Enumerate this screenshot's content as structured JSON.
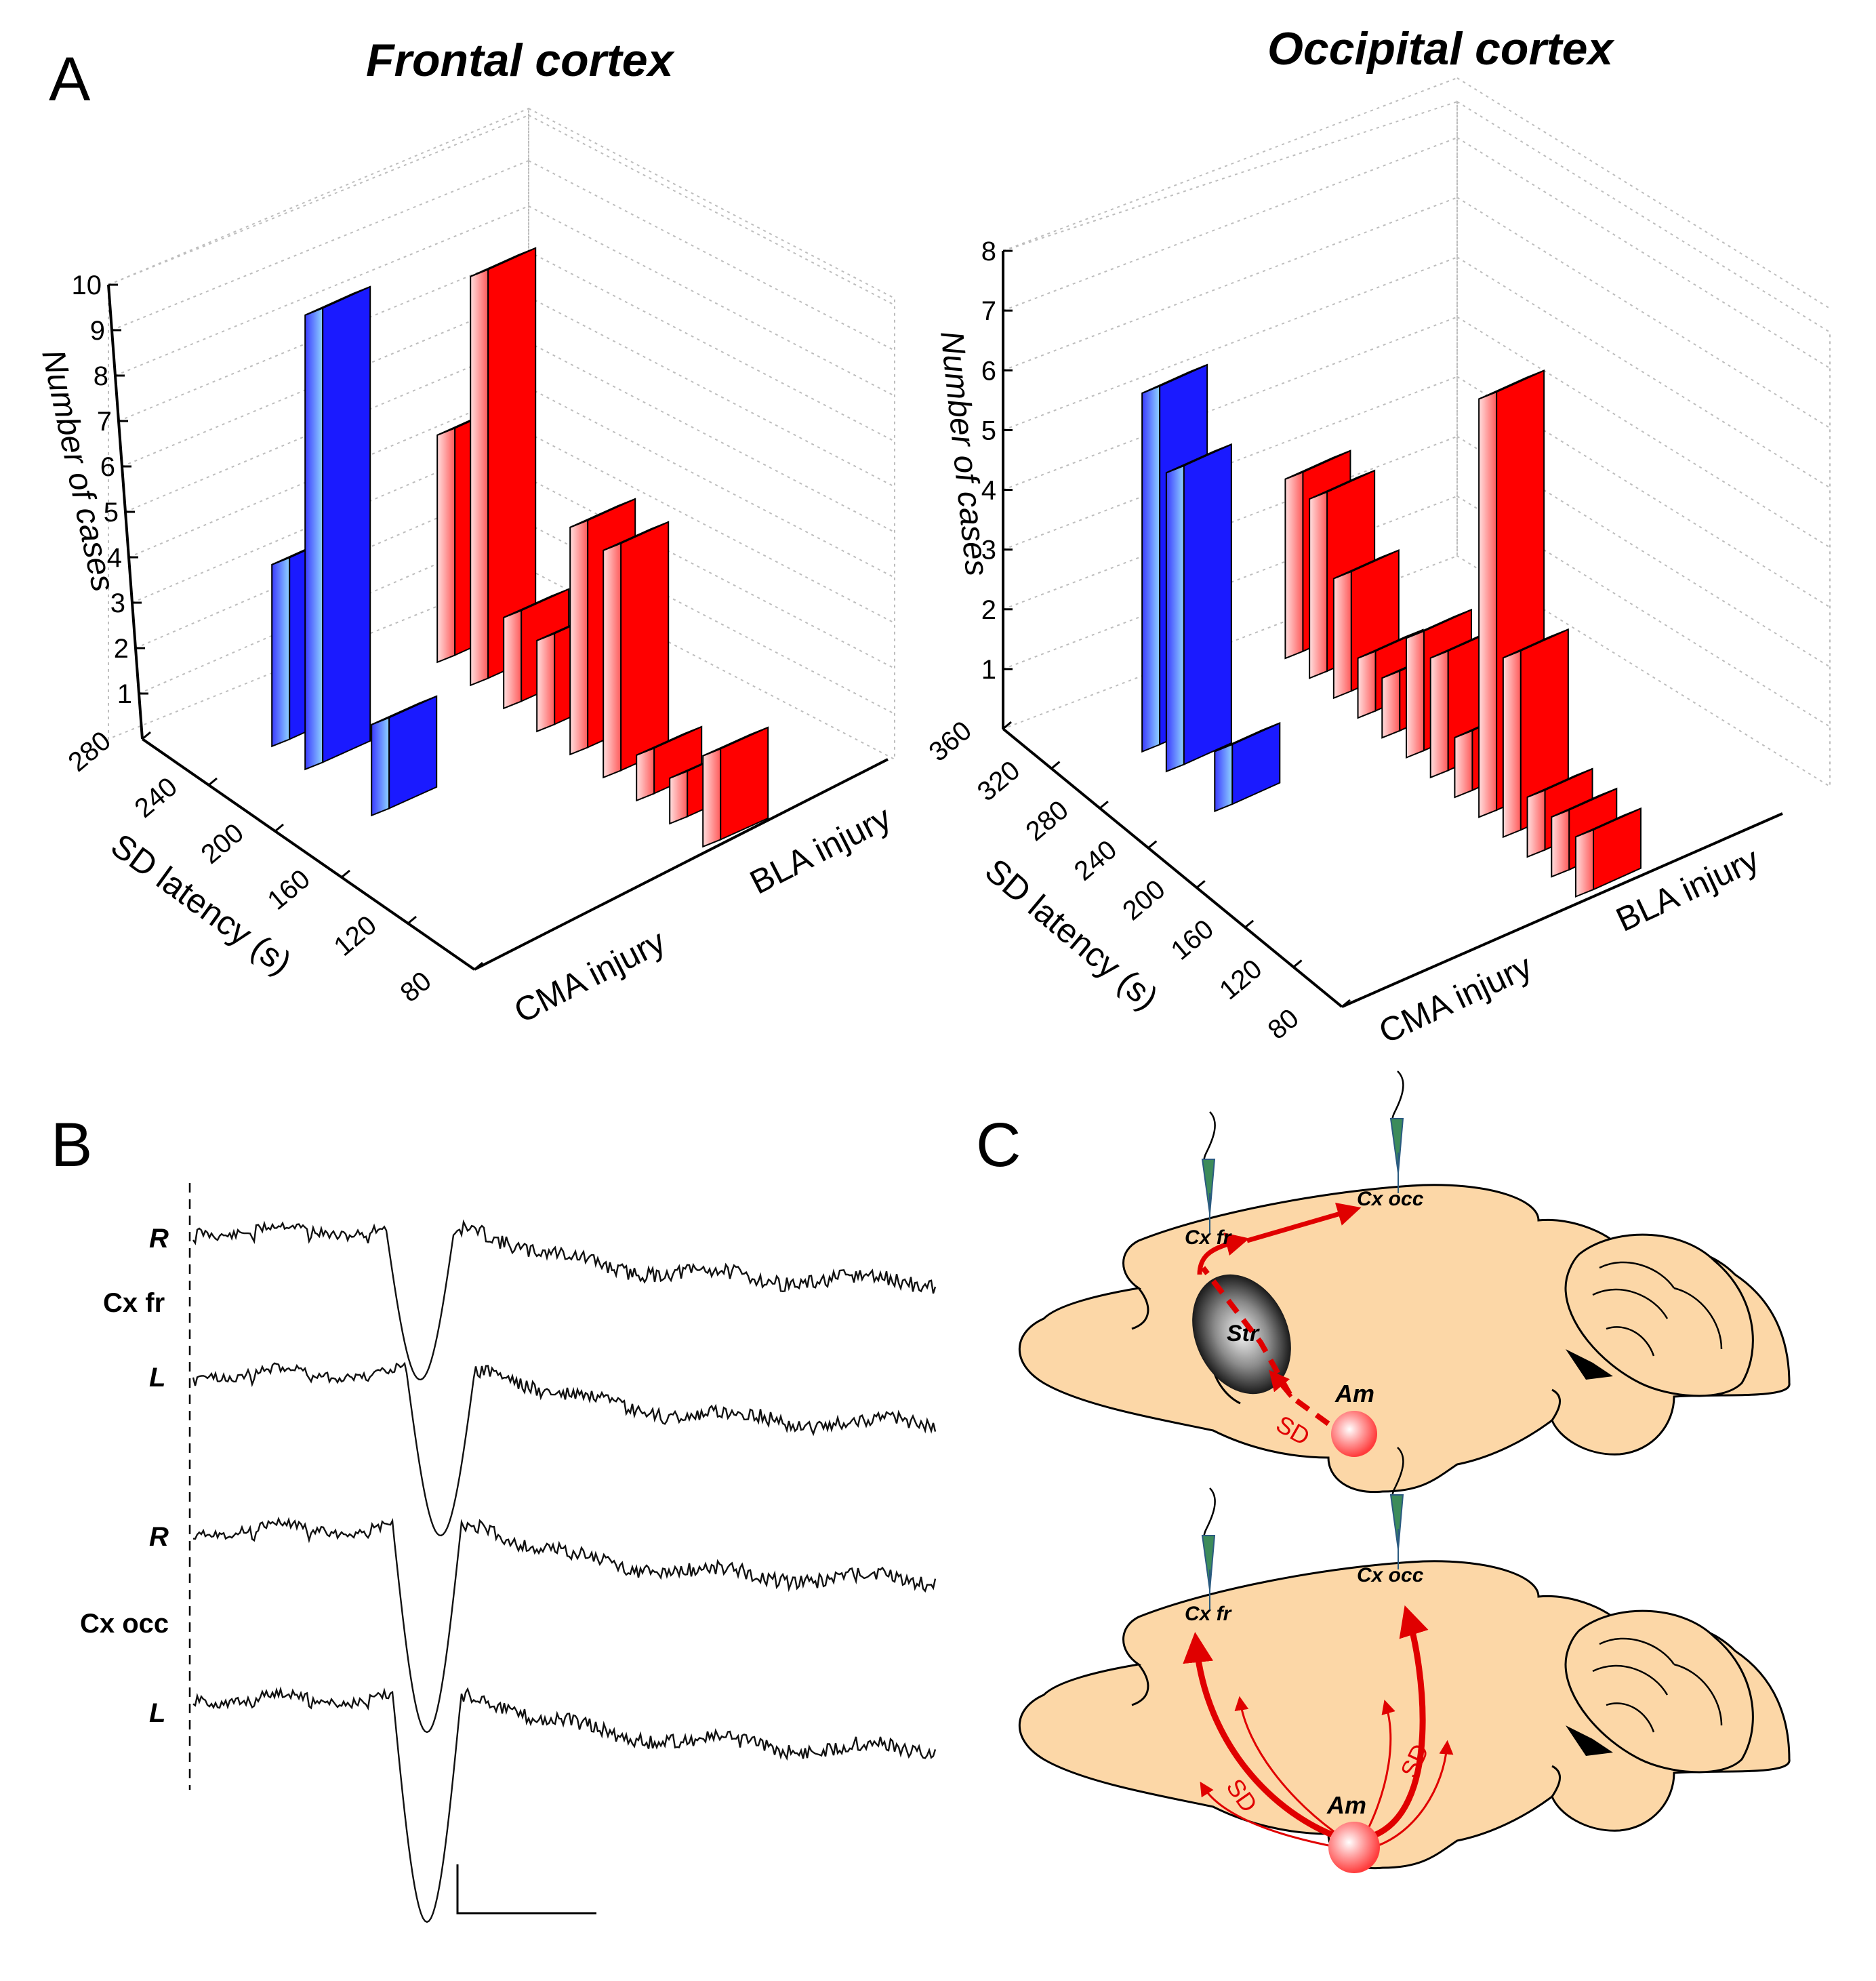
{
  "panels": {
    "A": {
      "letter": "A",
      "charts": [
        {
          "type": "bar",
          "title": "Frontal cortex",
          "ylabel": "Number of cases",
          "xlabel": "SD latency (s)",
          "yticks": [
            "1",
            "2",
            "3",
            "4",
            "5",
            "6",
            "7",
            "8",
            "9",
            "10"
          ],
          "xticks": [
            "280",
            "240",
            "200",
            "160",
            "120",
            "80"
          ],
          "categories": [
            "CMA injury",
            "BLA injury"
          ],
          "ylim": [
            0,
            10
          ],
          "colors": {
            "CMA injury": "#1a1aff",
            "BLA injury": "#ff0000"
          },
          "grid": true
        },
        {
          "type": "bar",
          "title": "Occipital cortex",
          "ylabel": "Number of cases",
          "xlabel": "SD latency (s)",
          "yticks": [
            "1",
            "2",
            "3",
            "4",
            "5",
            "6",
            "7",
            "8"
          ],
          "xticks": [
            "360",
            "320",
            "280",
            "240",
            "200",
            "160",
            "120",
            "80"
          ],
          "categories": [
            "CMA injury",
            "BLA injury"
          ],
          "ylim": [
            0,
            8
          ],
          "colors": {
            "CMA injury": "#1a1aff",
            "BLA injury": "#ff0000"
          },
          "grid": true
        }
      ]
    },
    "B": {
      "letter": "B",
      "groups": [
        "Cx fr",
        "Cx occ"
      ],
      "trace_labels": [
        "R",
        "L",
        "R",
        "L"
      ]
    },
    "C": {
      "letter": "C",
      "top": {
        "cx_fr": "Cx fr",
        "cx_occ": "Cx occ",
        "str": "Str",
        "am": "Am",
        "sd": "SD"
      },
      "bottom": {
        "cx_fr": "Cx fr",
        "cx_occ": "Cx occ",
        "am": "Am",
        "sd_left": "SD",
        "sd_right": "SD"
      }
    }
  },
  "chart_data": [
    {
      "type": "bar",
      "title": "Frontal cortex",
      "xlabel": "SD latency (s)",
      "ylabel": "Number of cases",
      "ylim": [
        0,
        10
      ],
      "series": [
        {
          "name": "CMA injury",
          "color": "#1a1aff",
          "x": [
            240,
            220,
            180
          ],
          "values": [
            4,
            10,
            2
          ]
        },
        {
          "name": "BLA injury",
          "color": "#ff0000",
          "x": [
            240,
            220,
            200,
            180,
            160,
            140,
            120,
            100,
            80
          ],
          "values": [
            5,
            9,
            2,
            2,
            5,
            5,
            1,
            1,
            2
          ]
        }
      ]
    },
    {
      "type": "bar",
      "title": "Occipital cortex",
      "xlabel": "SD latency (s)",
      "ylabel": "Number of cases",
      "ylim": [
        0,
        8
      ],
      "series": [
        {
          "name": "CMA injury",
          "color": "#1a1aff",
          "x": [
            300,
            280,
            240
          ],
          "values": [
            6,
            5,
            1
          ]
        },
        {
          "name": "BLA injury",
          "color": "#ff0000",
          "x": [
            320,
            300,
            280,
            260,
            240,
            220,
            200,
            180,
            160,
            140,
            120,
            100,
            80
          ],
          "values": [
            3,
            3,
            2,
            1,
            1,
            2,
            2,
            1,
            7,
            3,
            1,
            1,
            1
          ]
        }
      ]
    }
  ]
}
